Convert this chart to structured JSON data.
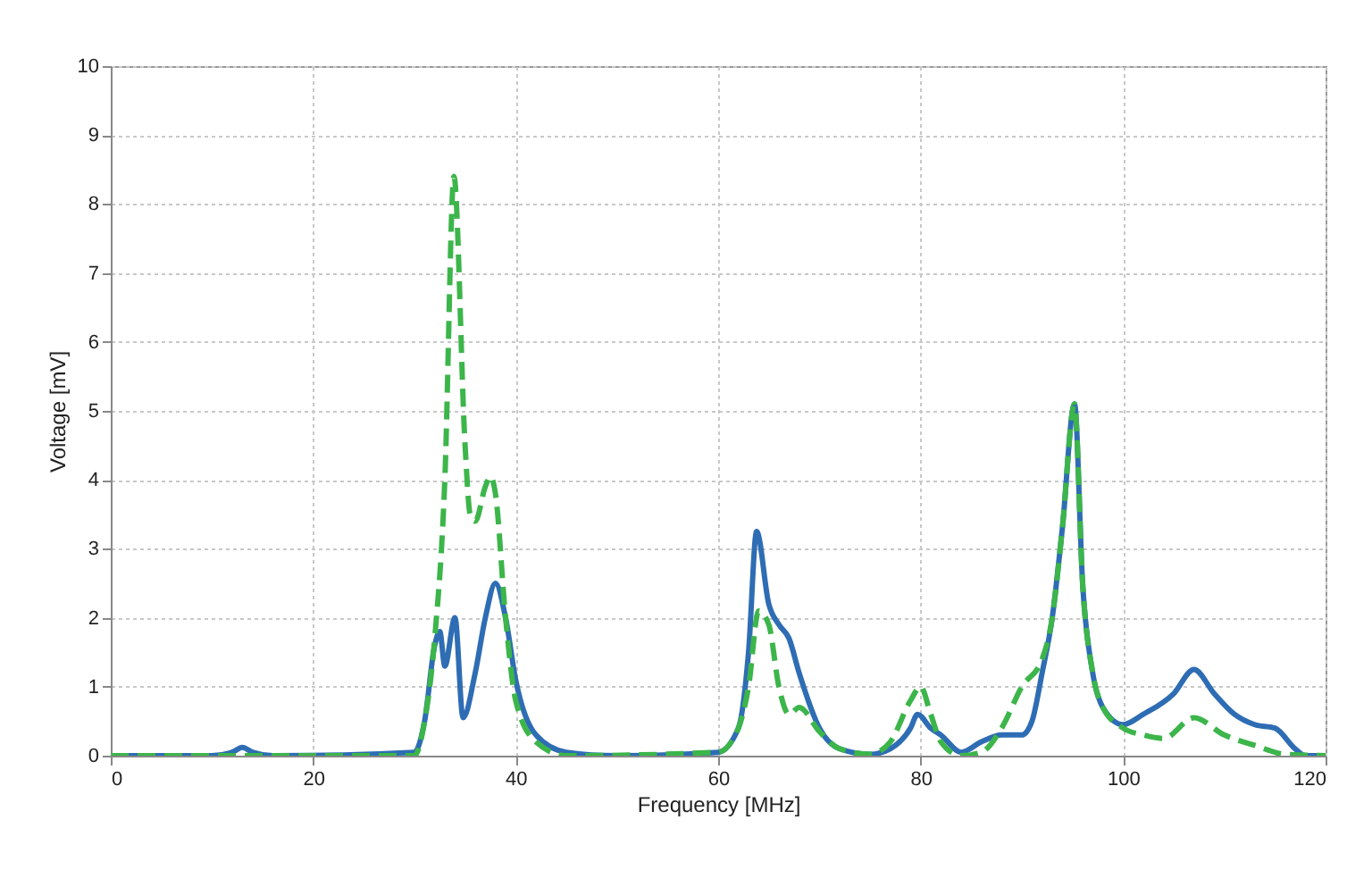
{
  "chart_data": {
    "type": "line",
    "xlabel": "Frequency [MHz]",
    "ylabel": "Voltage [mV]",
    "xlim": [
      0,
      120
    ],
    "ylim": [
      0,
      10
    ],
    "xticks": [
      0,
      20,
      40,
      60,
      80,
      100,
      120
    ],
    "yticks": [
      0,
      1,
      2,
      3,
      4,
      5,
      6,
      7,
      8,
      9,
      10
    ],
    "grid": true,
    "series": [
      {
        "color": "#2e6db4",
        "line_style": "solid",
        "x": [
          0,
          10,
          12,
          13,
          14,
          16,
          30,
          31,
          32,
          32.5,
          33,
          34,
          34.8,
          36,
          37,
          38,
          39,
          40,
          42,
          45,
          50,
          60,
          62,
          63,
          63.8,
          65,
          66,
          67,
          68,
          70,
          72,
          75,
          77,
          79,
          79.7,
          81,
          82,
          84,
          86,
          88,
          90,
          91,
          92,
          93,
          94,
          95.2,
          96,
          97,
          98,
          100,
          102,
          105,
          107,
          109,
          111,
          113,
          115,
          117,
          118,
          120
        ],
        "values": [
          0,
          0,
          0.05,
          0.12,
          0.05,
          0,
          0.05,
          0.5,
          1.6,
          1.8,
          1.3,
          2.0,
          0.55,
          1.2,
          2.0,
          2.5,
          2.0,
          1.1,
          0.3,
          0.05,
          0,
          0.05,
          0.4,
          1.5,
          3.25,
          2.2,
          1.9,
          1.7,
          1.2,
          0.4,
          0.1,
          0.02,
          0.1,
          0.4,
          0.6,
          0.4,
          0.3,
          0.05,
          0.2,
          0.3,
          0.3,
          0.5,
          1.2,
          2.0,
          3.3,
          5.1,
          2.5,
          1.2,
          0.7,
          0.45,
          0.6,
          0.9,
          1.25,
          0.9,
          0.6,
          0.45,
          0.4,
          0.1,
          0,
          0
        ]
      },
      {
        "color": "#3cb54a",
        "line_style": "dashed",
        "x": [
          0,
          30,
          31,
          32,
          33,
          33.9,
          35,
          35.5,
          36,
          37,
          37.5,
          38,
          39,
          40,
          42,
          45,
          60,
          62,
          63,
          64,
          65,
          66,
          67,
          68,
          70,
          72,
          75,
          77,
          79,
          80,
          81,
          82,
          84,
          86,
          88,
          90,
          92,
          93,
          94,
          95.2,
          96,
          97,
          98,
          100,
          102,
          104,
          107,
          110,
          113,
          116,
          120
        ],
        "values": [
          0,
          0,
          0.5,
          1.7,
          4.0,
          8.4,
          4.5,
          3.5,
          3.4,
          3.9,
          4.05,
          3.8,
          2.0,
          0.8,
          0.2,
          0,
          0.05,
          0.4,
          1.0,
          2.1,
          1.9,
          1.0,
          0.6,
          0.7,
          0.35,
          0.1,
          0.02,
          0.2,
          0.8,
          1.0,
          0.6,
          0.2,
          0,
          0.05,
          0.4,
          1.0,
          1.4,
          2.0,
          3.3,
          5.1,
          2.5,
          1.2,
          0.7,
          0.4,
          0.3,
          0.25,
          0.55,
          0.3,
          0.15,
          0.02,
          0
        ]
      }
    ]
  }
}
